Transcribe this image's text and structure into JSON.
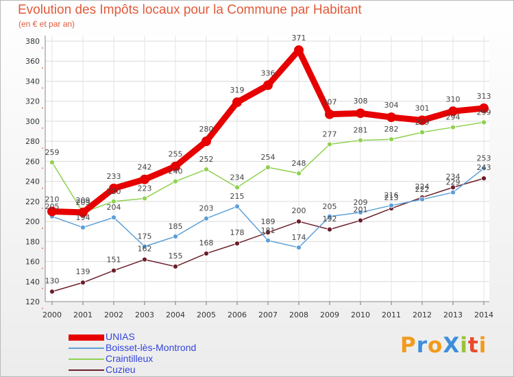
{
  "header": {
    "title": "Evolution des Impôts locaux pour la Commune par Habitant",
    "subtitle": "(en € et par an)"
  },
  "brand": {
    "text": "ProXiti",
    "letters": [
      "P",
      "r",
      "o",
      "X",
      "i",
      "t",
      "i"
    ],
    "colors": [
      "#f29a1d",
      "#3d8edb",
      "#f29a1d",
      "#3d8edb",
      "#9ac237",
      "#e84a2a",
      "#f29a1d"
    ]
  },
  "chart_data": {
    "type": "line",
    "title": "Evolution des Impôts locaux pour la Commune par Habitant",
    "subtitle": "(en € et par an)",
    "xlabel": "",
    "ylabel": "",
    "x": [
      "2000",
      "2001",
      "2002",
      "2003",
      "2004",
      "2005",
      "2006",
      "2007",
      "2008",
      "2009",
      "2010",
      "2011",
      "2012",
      "2013",
      "2014"
    ],
    "ylim": [
      120,
      380
    ],
    "yticks": [
      120,
      140,
      160,
      180,
      200,
      220,
      240,
      260,
      280,
      300,
      320,
      340,
      360,
      380
    ],
    "grid": true,
    "legend_position": "bottom-left",
    "series": [
      {
        "name": "Cuzieu",
        "color": "#6b1f2a",
        "values": [
          130,
          139,
          151,
          162,
          155,
          168,
          178,
          189,
          200,
          192,
          201,
          213,
          224,
          234,
          243
        ]
      },
      {
        "name": "Boisset-lès-Montrond",
        "color": "#5d9fd8",
        "values": [
          205,
          194,
          204,
          175,
          185,
          203,
          215,
          181,
          174,
          205,
          209,
          216,
          222,
          229,
          253
        ]
      },
      {
        "name": "Craintilleux",
        "color": "#8fd14f",
        "values": [
          259,
          209,
          220,
          223,
          240,
          252,
          234,
          254,
          248,
          277,
          281,
          282,
          289,
          294,
          299
        ]
      },
      {
        "name": "UNIAS",
        "color": "#e60000",
        "values": [
          210,
          209,
          233,
          242,
          255,
          280,
          319,
          336,
          371,
          307,
          308,
          304,
          301,
          310,
          313
        ]
      }
    ],
    "legend_order": [
      "UNIAS",
      "Boisset-lès-Montrond",
      "Craintilleux",
      "Cuzieu"
    ]
  }
}
